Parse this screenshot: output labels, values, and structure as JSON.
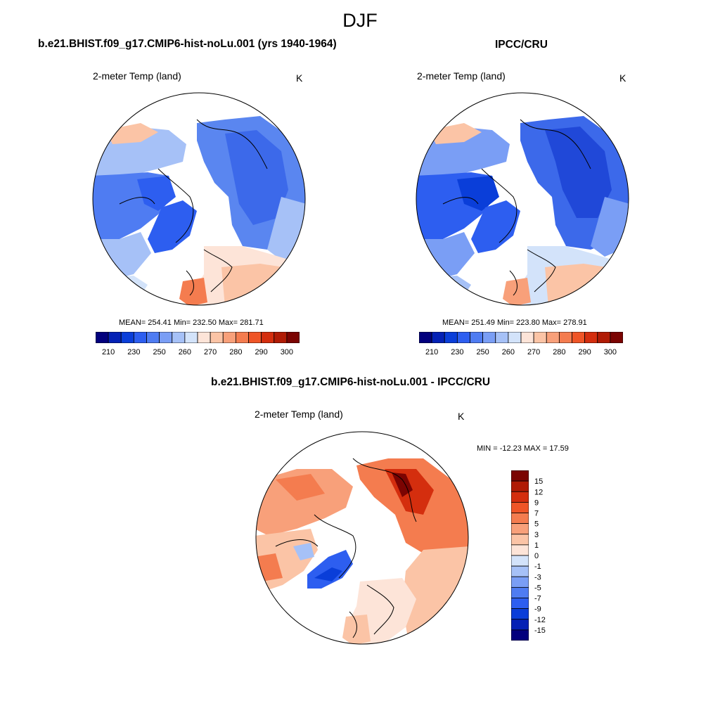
{
  "figure": {
    "title": "DJF"
  },
  "palette_abs": [
    "#02007d",
    "#0421b5",
    "#0a3ed9",
    "#2d5ef0",
    "#4f7cf2",
    "#7a9ef5",
    "#a6c1f7",
    "#d3e3fa",
    "#fde4d8",
    "#fbc4a6",
    "#f8a07a",
    "#f47c4f",
    "#ef5527",
    "#d42e0e",
    "#b01b05",
    "#7b0402"
  ],
  "palette_diff": [
    "#02007d",
    "#0421b5",
    "#0a3ed9",
    "#2d5ef0",
    "#4f7cf2",
    "#7a9ef5",
    "#a6c1f7",
    "#d3e3fa",
    "#fde4d8",
    "#fbc4a6",
    "#f8a07a",
    "#f47c4f",
    "#ef5527",
    "#d42e0e",
    "#b01b05",
    "#7b0402"
  ],
  "panels": {
    "model": {
      "title": "b.e21.BHIST.f09_g17.CMIP6-hist-noLu.001 (yrs 1940-1964)",
      "variable": "2-meter Temp (land)",
      "units": "K",
      "stats": "MEAN= 254.41  Min= 232.50  Max= 281.71"
    },
    "obs": {
      "title": "IPCC/CRU",
      "variable": "2-meter Temp (land)",
      "units": "K",
      "stats": "MEAN= 251.49  Min= 223.80  Max= 278.91"
    },
    "diff": {
      "title": "b.e21.BHIST.f09_g17.CMIP6-hist-noLu.001 - IPCC/CRU",
      "variable": "2-meter Temp (land)",
      "units": "K",
      "stats": "MIN = -12.23 MAX =  17.59"
    }
  },
  "colorbar_abs": {
    "labels": [
      "210",
      "230",
      "250",
      "260",
      "270",
      "280",
      "290",
      "300"
    ]
  },
  "colorbar_diff": {
    "labels": [
      "15",
      "12",
      "9",
      "7",
      "5",
      "3",
      "1",
      "0",
      "-1",
      "-3",
      "-5",
      "-7",
      "-9",
      "-12",
      "-15"
    ]
  }
}
